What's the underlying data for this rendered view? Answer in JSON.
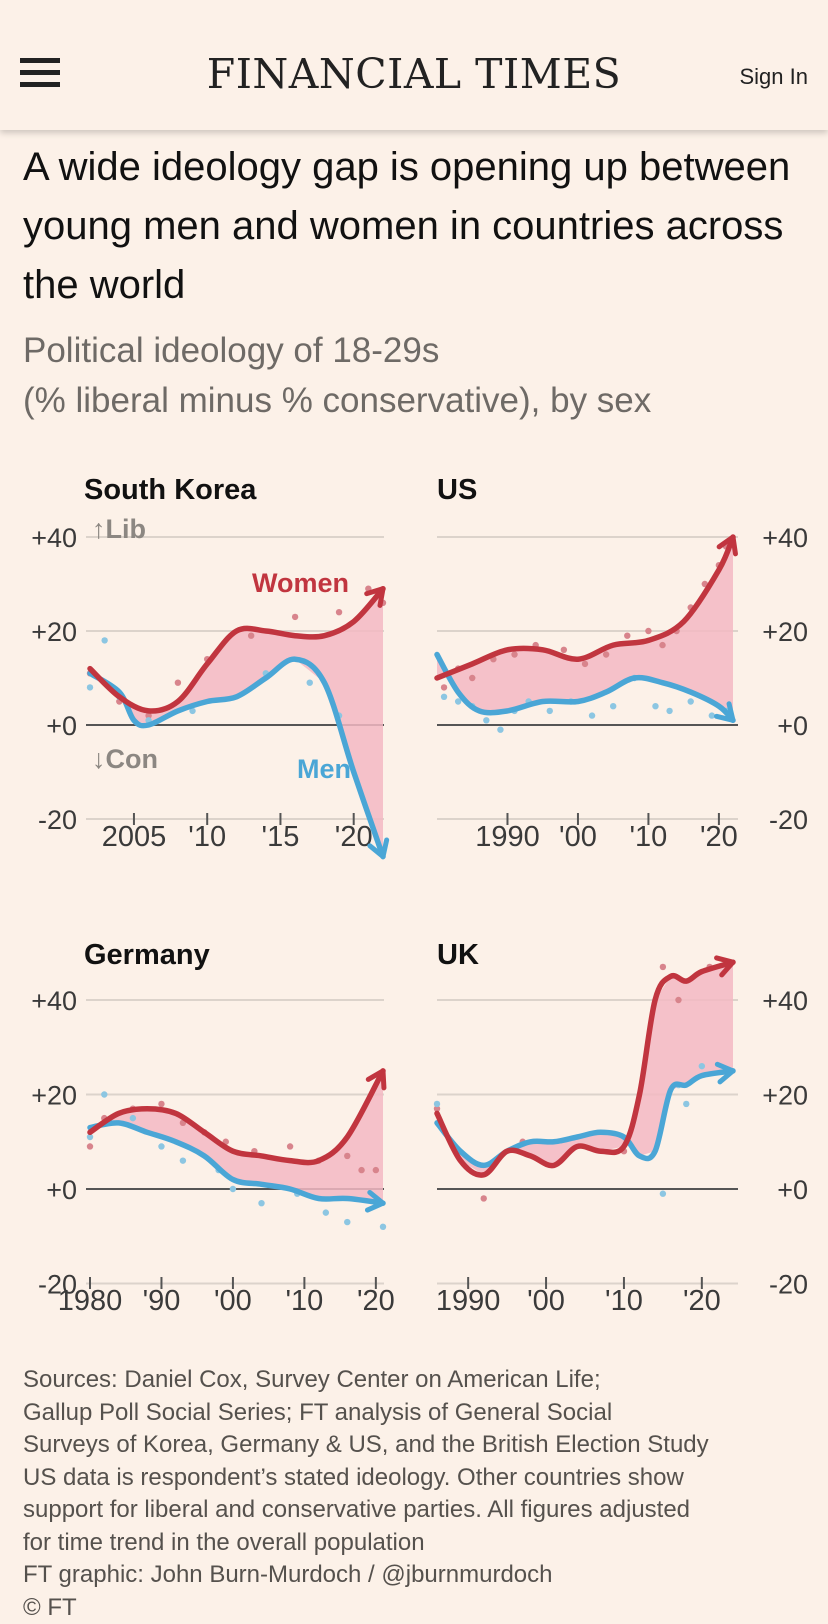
{
  "header": {
    "brand": "FINANCIAL TIMES",
    "sign_in": "Sign In",
    "menu_icon": "hamburger-menu-icon"
  },
  "article": {
    "title": "A wide ideology gap is opening up between young men and women in countries across the world",
    "subtitle_line1": "Political ideology of 18-29s",
    "subtitle_line2": "(% liberal minus % conservative), by sex"
  },
  "colors": {
    "women": "#c1353f",
    "men": "#4aa6d6",
    "gap_fill": "#f3b9c3",
    "women_dots": "#d8848c",
    "men_dots": "#8cc6e2",
    "grid": "#dcd3cb",
    "zero_line": "#555555",
    "tick_text": "#3a3a3a"
  },
  "chart_data": [
    {
      "type": "line",
      "title": "South Korea",
      "ylim": [
        -20,
        40
      ],
      "yticks": [
        "+40",
        "+20",
        "+0",
        "-20"
      ],
      "ytick_values": [
        40,
        20,
        0,
        -20
      ],
      "xlim": [
        2002,
        2022
      ],
      "xticks": [
        2005,
        2010,
        2015,
        2020
      ],
      "xtick_labels": [
        "2005",
        "'10",
        "'15",
        "'20"
      ],
      "annotations": {
        "lib": "↑Lib",
        "con": "↓Con",
        "women_label": "Women",
        "men_label": "Men"
      },
      "series": [
        {
          "name": "Women",
          "x": [
            2002,
            2004,
            2006,
            2008,
            2010,
            2012,
            2014,
            2016,
            2018,
            2020,
            2022
          ],
          "y": [
            12,
            6,
            3,
            5,
            13,
            20,
            20,
            19,
            19,
            22,
            29
          ]
        },
        {
          "name": "Men",
          "x": [
            2002,
            2004,
            2005,
            2006,
            2008,
            2010,
            2012,
            2014,
            2016,
            2018,
            2020,
            2022
          ],
          "y": [
            11,
            7,
            1,
            0,
            3,
            5,
            6,
            10,
            14,
            9,
            -10,
            -28
          ]
        }
      ],
      "scatter": {
        "women": [
          [
            2002,
            11
          ],
          [
            2003,
            9
          ],
          [
            2004,
            5
          ],
          [
            2006,
            2
          ],
          [
            2008,
            9
          ],
          [
            2010,
            14
          ],
          [
            2013,
            19
          ],
          [
            2016,
            23
          ],
          [
            2019,
            24
          ],
          [
            2021,
            29
          ],
          [
            2022,
            26
          ]
        ],
        "men": [
          [
            2002,
            8
          ],
          [
            2003,
            18
          ],
          [
            2004,
            6
          ],
          [
            2006,
            1
          ],
          [
            2009,
            3
          ],
          [
            2014,
            11
          ],
          [
            2017,
            9
          ],
          [
            2019,
            2
          ]
        ]
      }
    },
    {
      "type": "line",
      "title": "US",
      "ylim": [
        -20,
        40
      ],
      "yticks": [
        "+40",
        "+20",
        "+0",
        "-20"
      ],
      "ytick_values": [
        40,
        20,
        0,
        -20
      ],
      "xlim": [
        1980,
        2022
      ],
      "xticks": [
        1990,
        2000,
        2010,
        2020
      ],
      "xtick_labels": [
        "1990",
        "'00",
        "'10",
        "'20"
      ],
      "series": [
        {
          "name": "Women",
          "x": [
            1980,
            1985,
            1990,
            1995,
            2000,
            2005,
            2010,
            2015,
            2020,
            2022
          ],
          "y": [
            10,
            13,
            16,
            16,
            14,
            17,
            18,
            22,
            33,
            40
          ]
        },
        {
          "name": "Men",
          "x": [
            1980,
            1983,
            1986,
            1990,
            1995,
            2000,
            2004,
            2008,
            2012,
            2016,
            2020,
            2022
          ],
          "y": [
            15,
            7,
            3,
            3,
            5,
            5,
            7,
            10,
            9,
            7,
            4,
            1
          ]
        }
      ],
      "scatter": {
        "women": [
          [
            1981,
            8
          ],
          [
            1983,
            12
          ],
          [
            1985,
            10
          ],
          [
            1988,
            14
          ],
          [
            1991,
            15
          ],
          [
            1994,
            17
          ],
          [
            1998,
            16
          ],
          [
            2001,
            13
          ],
          [
            2004,
            15
          ],
          [
            2007,
            19
          ],
          [
            2010,
            20
          ],
          [
            2012,
            17
          ],
          [
            2014,
            20
          ],
          [
            2016,
            25
          ],
          [
            2018,
            30
          ],
          [
            2020,
            34
          ],
          [
            2021,
            38
          ]
        ],
        "men": [
          [
            1981,
            6
          ],
          [
            1983,
            5
          ],
          [
            1985,
            4
          ],
          [
            1987,
            1
          ],
          [
            1989,
            -1
          ],
          [
            1991,
            3
          ],
          [
            1993,
            5
          ],
          [
            1996,
            3
          ],
          [
            1999,
            5
          ],
          [
            2002,
            2
          ],
          [
            2005,
            4
          ],
          [
            2008,
            10
          ],
          [
            2011,
            4
          ],
          [
            2013,
            3
          ],
          [
            2016,
            5
          ],
          [
            2019,
            2
          ],
          [
            2021,
            3
          ]
        ]
      }
    },
    {
      "type": "line",
      "title": "Germany",
      "ylim": [
        -20,
        40
      ],
      "yticks": [
        "+40",
        "+20",
        "+0",
        "-20"
      ],
      "ytick_values": [
        40,
        20,
        0,
        -20
      ],
      "xlim": [
        1980,
        2021
      ],
      "xticks": [
        1980,
        1990,
        2000,
        2010,
        2020
      ],
      "xtick_labels": [
        "1980",
        "'90",
        "'00",
        "'10",
        "'20"
      ],
      "series": [
        {
          "name": "Women",
          "x": [
            1980,
            1984,
            1988,
            1992,
            1996,
            2000,
            2004,
            2008,
            2012,
            2016,
            2021
          ],
          "y": [
            12,
            16,
            17,
            16,
            12,
            8,
            7,
            6,
            6,
            11,
            25
          ]
        },
        {
          "name": "Men",
          "x": [
            1980,
            1984,
            1988,
            1992,
            1996,
            2000,
            2004,
            2008,
            2012,
            2016,
            2021
          ],
          "y": [
            13,
            14,
            12,
            10,
            7,
            2,
            1,
            0,
            -2,
            -2,
            -3
          ]
        }
      ],
      "scatter": {
        "women": [
          [
            1980,
            9
          ],
          [
            1982,
            15
          ],
          [
            1986,
            17
          ],
          [
            1990,
            18
          ],
          [
            1993,
            14
          ],
          [
            1996,
            12
          ],
          [
            1999,
            10
          ],
          [
            2003,
            8
          ],
          [
            2008,
            9
          ],
          [
            2012,
            6
          ],
          [
            2016,
            7
          ],
          [
            2018,
            4
          ],
          [
            2020,
            4
          ]
        ],
        "men": [
          [
            1980,
            11
          ],
          [
            1982,
            20
          ],
          [
            1986,
            15
          ],
          [
            1990,
            9
          ],
          [
            1993,
            6
          ],
          [
            1998,
            4
          ],
          [
            2000,
            0
          ],
          [
            2004,
            -3
          ],
          [
            2009,
            -1
          ],
          [
            2013,
            -5
          ],
          [
            2016,
            -7
          ],
          [
            2021,
            -8
          ]
        ]
      }
    },
    {
      "type": "line",
      "title": "UK",
      "ylim": [
        -20,
        40
      ],
      "yticks": [
        "+40",
        "+20",
        "+0",
        "-20"
      ],
      "ytick_values": [
        40,
        20,
        0,
        -20
      ],
      "xlim": [
        1986,
        2024
      ],
      "xticks": [
        1990,
        2000,
        2010,
        2020
      ],
      "xtick_labels": [
        "1990",
        "'00",
        "'10",
        "'20"
      ],
      "series": [
        {
          "name": "Women",
          "x": [
            1986,
            1989,
            1992,
            1995,
            1998,
            2001,
            2004,
            2007,
            2010,
            2012,
            2014,
            2016,
            2018,
            2020,
            2024
          ],
          "y": [
            16,
            6,
            3,
            8,
            7,
            5,
            9,
            8,
            9,
            20,
            40,
            45,
            44,
            46,
            48
          ]
        },
        {
          "name": "Men",
          "x": [
            1986,
            1989,
            1992,
            1995,
            1998,
            2001,
            2004,
            2007,
            2010,
            2012,
            2014,
            2016,
            2018,
            2020,
            2024
          ],
          "y": [
            14,
            8,
            5,
            8,
            10,
            10,
            11,
            12,
            11,
            7,
            8,
            21,
            22,
            24,
            25
          ]
        }
      ],
      "scatter": {
        "women": [
          [
            1986,
            17
          ],
          [
            1992,
            -2
          ],
          [
            1997,
            10
          ],
          [
            2010,
            8
          ],
          [
            2015,
            47
          ],
          [
            2017,
            40
          ],
          [
            2021,
            47
          ]
        ],
        "men": [
          [
            1986,
            18
          ],
          [
            2015,
            -1
          ],
          [
            2017,
            22
          ],
          [
            2018,
            18
          ],
          [
            2020,
            26
          ]
        ]
      }
    }
  ],
  "footer": {
    "lines": [
      "Sources: Daniel Cox, Survey Center on American Life;",
      "Gallup Poll Social Series; FT analysis of General Social",
      "Surveys of Korea, Germany & US, and the British Election Study",
      "US data is respondent’s stated ideology. Other countries show",
      "support for liberal and conservative parties. All figures adjusted",
      "for time trend in the overall population",
      "FT graphic: John Burn-Murdoch / @jburnmurdoch",
      "© FT"
    ]
  }
}
